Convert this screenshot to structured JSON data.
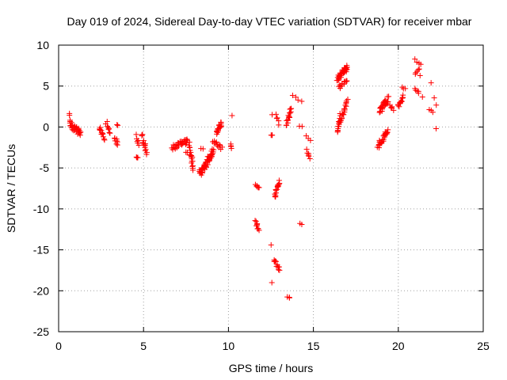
{
  "chart_data": {
    "type": "scatter",
    "title": "Day 019 of 2024, Sidereal Day-to-day VTEC variation (SDTVAR) for receiver mbar",
    "xlabel": "GPS time / hours",
    "ylabel": "SDTVAR / TECUs",
    "xlim": [
      0,
      25
    ],
    "ylim": [
      -25,
      10
    ],
    "xticks": [
      "0",
      "5",
      "10",
      "15",
      "20",
      "25"
    ],
    "yticks": [
      "10",
      "5",
      "0",
      "-5",
      "-10",
      "-15",
      "-20",
      "-25"
    ],
    "grid": true,
    "marker": "+",
    "color": "#ff0000",
    "series": [
      {
        "name": "SDTVAR",
        "clusters": [
          {
            "x0": 0.6,
            "x1": 0.7,
            "y0": 1.6,
            "y1": 0.3,
            "n": 5,
            "spread": 0.5
          },
          {
            "x0": 0.7,
            "x1": 1.3,
            "y0": 0.3,
            "y1": -0.8,
            "n": 30,
            "spread": 0.8
          },
          {
            "x0": 2.4,
            "x1": 2.7,
            "y0": -0.2,
            "y1": -1.3,
            "n": 12,
            "spread": 0.7
          },
          {
            "x0": 2.8,
            "x1": 3.0,
            "y0": 0.6,
            "y1": -0.8,
            "n": 8,
            "spread": 0.6
          },
          {
            "x0": 3.3,
            "x1": 3.5,
            "y0": -1.2,
            "y1": -2.1,
            "n": 8,
            "spread": 0.5
          },
          {
            "x0": 3.4,
            "x1": 3.5,
            "y0": 0.2,
            "y1": 0.1,
            "n": 2,
            "spread": 0.2
          },
          {
            "x0": 4.6,
            "x1": 4.7,
            "y0": -1.0,
            "y1": -2.3,
            "n": 6,
            "spread": 0.4
          },
          {
            "x0": 4.6,
            "x1": 4.7,
            "y0": -3.6,
            "y1": -3.8,
            "n": 3,
            "spread": 0.2
          },
          {
            "x0": 4.9,
            "x1": 5.2,
            "y0": -1.2,
            "y1": -3.2,
            "n": 16,
            "spread": 0.8
          },
          {
            "x0": 6.7,
            "x1": 7.6,
            "y0": -2.6,
            "y1": -1.6,
            "n": 28,
            "spread": 0.8
          },
          {
            "x0": 7.7,
            "x1": 7.9,
            "y0": -2.0,
            "y1": -5.2,
            "n": 16,
            "spread": 0.6
          },
          {
            "x0": 7.5,
            "x1": 7.9,
            "y0": -3.2,
            "y1": -3.6,
            "n": 6,
            "spread": 0.4
          },
          {
            "x0": 8.3,
            "x1": 9.1,
            "y0": -5.8,
            "y1": -3.0,
            "n": 60,
            "spread": 0.9
          },
          {
            "x0": 8.4,
            "x1": 8.5,
            "y0": -2.6,
            "y1": -2.6,
            "n": 2,
            "spread": 0.2
          },
          {
            "x0": 9.1,
            "x1": 9.6,
            "y0": -1.8,
            "y1": -2.6,
            "n": 12,
            "spread": 0.6
          },
          {
            "x0": 9.3,
            "x1": 9.6,
            "y0": -0.6,
            "y1": 0.4,
            "n": 18,
            "spread": 0.7
          },
          {
            "x0": 10.2,
            "x1": 10.2,
            "y0": 1.4,
            "y1": 1.4,
            "n": 1,
            "spread": 0.0
          },
          {
            "x0": 10.1,
            "x1": 10.2,
            "y0": -2.0,
            "y1": -2.6,
            "n": 4,
            "spread": 0.3
          },
          {
            "x0": 11.6,
            "x1": 11.8,
            "y0": -7.0,
            "y1": -7.4,
            "n": 6,
            "spread": 0.3
          },
          {
            "x0": 11.6,
            "x1": 11.8,
            "y0": -11.6,
            "y1": -12.6,
            "n": 10,
            "spread": 0.5
          },
          {
            "x0": 12.5,
            "x1": 12.6,
            "y0": -0.9,
            "y1": -1.1,
            "n": 3,
            "spread": 0.2
          },
          {
            "x0": 12.5,
            "x1": 12.6,
            "y0": 1.5,
            "y1": 1.5,
            "n": 1,
            "spread": 0.0
          },
          {
            "x0": 12.5,
            "x1": 12.6,
            "y0": -14.4,
            "y1": -14.4,
            "n": 1,
            "spread": 0.0
          },
          {
            "x0": 12.5,
            "x1": 12.6,
            "y0": -19.0,
            "y1": -19.0,
            "n": 1,
            "spread": 0.0
          },
          {
            "x0": 12.7,
            "x1": 13.0,
            "y0": -8.5,
            "y1": -6.6,
            "n": 16,
            "spread": 0.6
          },
          {
            "x0": 12.7,
            "x1": 13.0,
            "y0": -16.2,
            "y1": -17.4,
            "n": 12,
            "spread": 0.6
          },
          {
            "x0": 12.8,
            "x1": 13.0,
            "y0": 1.5,
            "y1": 0.4,
            "n": 5,
            "spread": 0.5
          },
          {
            "x0": 13.4,
            "x1": 13.7,
            "y0": 0.3,
            "y1": 2.4,
            "n": 16,
            "spread": 0.6
          },
          {
            "x0": 13.5,
            "x1": 13.6,
            "y0": -20.8,
            "y1": -20.9,
            "n": 3,
            "spread": 0.2
          },
          {
            "x0": 13.8,
            "x1": 14.0,
            "y0": 3.8,
            "y1": 3.6,
            "n": 2,
            "spread": 0.2
          },
          {
            "x0": 14.1,
            "x1": 14.3,
            "y0": 3.3,
            "y1": 3.1,
            "n": 2,
            "spread": 0.2
          },
          {
            "x0": 14.2,
            "x1": 14.3,
            "y0": 0.1,
            "y1": 0.0,
            "n": 2,
            "spread": 0.2
          },
          {
            "x0": 14.2,
            "x1": 14.3,
            "y0": -11.8,
            "y1": -11.9,
            "n": 2,
            "spread": 0.2
          },
          {
            "x0": 14.6,
            "x1": 14.8,
            "y0": -1.0,
            "y1": -1.5,
            "n": 3,
            "spread": 0.3
          },
          {
            "x0": 14.6,
            "x1": 14.8,
            "y0": -2.9,
            "y1": -3.7,
            "n": 6,
            "spread": 0.4
          },
          {
            "x0": 16.4,
            "x1": 16.6,
            "y0": -0.6,
            "y1": 1.4,
            "n": 14,
            "spread": 0.5
          },
          {
            "x0": 16.4,
            "x1": 17.0,
            "y0": 6.0,
            "y1": 7.2,
            "n": 40,
            "spread": 0.8
          },
          {
            "x0": 16.5,
            "x1": 17.0,
            "y0": 4.8,
            "y1": 5.6,
            "n": 12,
            "spread": 0.5
          },
          {
            "x0": 16.6,
            "x1": 17.0,
            "y0": 0.8,
            "y1": 3.2,
            "n": 20,
            "spread": 0.6
          },
          {
            "x0": 18.8,
            "x1": 19.4,
            "y0": -2.4,
            "y1": -0.4,
            "n": 30,
            "spread": 0.7
          },
          {
            "x0": 18.9,
            "x1": 19.4,
            "y0": 2.0,
            "y1": 3.4,
            "n": 30,
            "spread": 0.8
          },
          {
            "x0": 19.5,
            "x1": 19.7,
            "y0": 2.6,
            "y1": 2.2,
            "n": 5,
            "spread": 0.4
          },
          {
            "x0": 20.0,
            "x1": 20.3,
            "y0": 2.6,
            "y1": 3.8,
            "n": 14,
            "spread": 0.6
          },
          {
            "x0": 20.2,
            "x1": 20.4,
            "y0": 5.0,
            "y1": 4.6,
            "n": 3,
            "spread": 0.4
          },
          {
            "x0": 21.0,
            "x1": 21.2,
            "y0": 6.6,
            "y1": 7.0,
            "n": 5,
            "spread": 0.3
          },
          {
            "x0": 21.0,
            "x1": 21.3,
            "y0": 8.2,
            "y1": 7.8,
            "n": 4,
            "spread": 0.3
          },
          {
            "x0": 21.0,
            "x1": 21.2,
            "y0": 4.6,
            "y1": 4.2,
            "n": 5,
            "spread": 0.3
          },
          {
            "x0": 21.3,
            "x1": 21.4,
            "y0": 6.3,
            "y1": 3.6,
            "n": 2,
            "spread": 0.2
          },
          {
            "x0": 21.8,
            "x1": 22.0,
            "y0": 5.4,
            "y1": 5.4,
            "n": 1,
            "spread": 0.0
          },
          {
            "x0": 21.8,
            "x1": 22.0,
            "y0": 2.2,
            "y1": 1.8,
            "n": 3,
            "spread": 0.3
          },
          {
            "x0": 22.1,
            "x1": 22.2,
            "y0": 3.6,
            "y1": 2.7,
            "n": 2,
            "spread": 0.2
          },
          {
            "x0": 22.2,
            "x1": 22.2,
            "y0": -0.2,
            "y1": -0.2,
            "n": 1,
            "spread": 0.0
          }
        ]
      }
    ]
  }
}
